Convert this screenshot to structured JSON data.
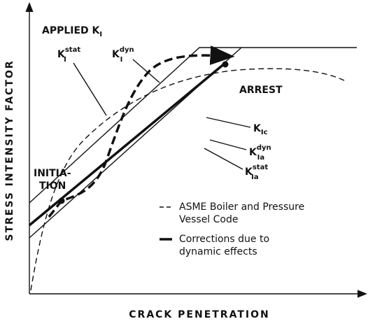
{
  "axes": {
    "y_label": "STRESS INTENSITY FACTOR",
    "x_label": "CRACK PENETRATION"
  },
  "applied": {
    "text": "APPLIED K",
    "sub": "I"
  },
  "k_stat": {
    "base": "K",
    "sub": "I",
    "sup": "stat"
  },
  "k_dyn": {
    "base": "K",
    "sub": "I",
    "sup": "dyn"
  },
  "k_ic": {
    "base": "K",
    "sub": "Ic"
  },
  "k_ia_dyn": {
    "base": "K",
    "sub": "Ia",
    "sup": "dyn"
  },
  "k_ia_stat": {
    "base": "K",
    "sub": "Ia",
    "sup": "stat"
  },
  "arrest": "ARREST",
  "initiation": [
    "INITIA-",
    "TION"
  ],
  "legend": [
    {
      "lines": [
        "ASME  Boiler and Pressure",
        "Vessel Code"
      ]
    },
    {
      "lines": [
        "Corrections due to",
        "dynamic effects"
      ]
    }
  ]
}
